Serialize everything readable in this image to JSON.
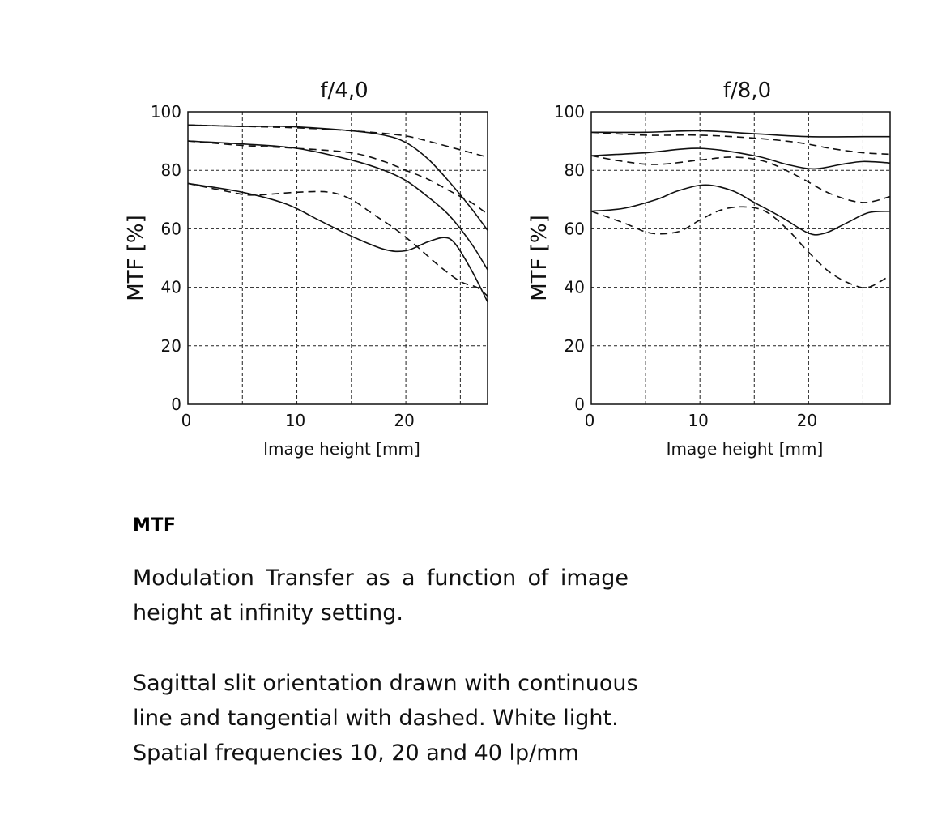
{
  "chart_data": [
    {
      "type": "line",
      "title": "f/4,0",
      "xlabel": "Image height [mm]",
      "ylabel": "MTF [%]",
      "xlim": [
        0,
        27.5
      ],
      "ylim": [
        0,
        100
      ],
      "xticks": [
        0,
        10,
        20
      ],
      "yticks": [
        0,
        20,
        40,
        60,
        80,
        100
      ],
      "x_grid": [
        5,
        10,
        15,
        20,
        25
      ],
      "grid": true,
      "series": [
        {
          "style": "solid",
          "points": [
            [
              0,
              95.5
            ],
            [
              5,
              95
            ],
            [
              9,
              95
            ],
            [
              15,
              93.5
            ],
            [
              18,
              92
            ],
            [
              20,
              89.5
            ],
            [
              22,
              84
            ],
            [
              24,
              76
            ],
            [
              26,
              67
            ],
            [
              27.5,
              59.5
            ]
          ]
        },
        {
          "style": "dashed",
          "points": [
            [
              0,
              95.5
            ],
            [
              5,
              95
            ],
            [
              10,
              94.5
            ],
            [
              15,
              93.5
            ],
            [
              19.5,
              92
            ],
            [
              22,
              90
            ],
            [
              25,
              87
            ],
            [
              27.5,
              84.5
            ]
          ]
        },
        {
          "style": "solid",
          "points": [
            [
              0,
              90
            ],
            [
              5,
              89
            ],
            [
              10,
              87.5
            ],
            [
              15,
              83.5
            ],
            [
              18,
              80
            ],
            [
              20,
              76.5
            ],
            [
              22,
              71
            ],
            [
              24,
              64.5
            ],
            [
              26,
              55
            ],
            [
              27.5,
              46
            ]
          ]
        },
        {
          "style": "dashed",
          "points": [
            [
              0,
              90
            ],
            [
              5,
              88.5
            ],
            [
              10,
              87.5
            ],
            [
              15,
              86
            ],
            [
              18,
              83
            ],
            [
              20,
              80
            ],
            [
              22,
              77
            ],
            [
              24,
              73
            ],
            [
              26,
              69
            ],
            [
              27.5,
              65
            ]
          ]
        },
        {
          "style": "solid",
          "points": [
            [
              0,
              75.5
            ],
            [
              5,
              72.5
            ],
            [
              9,
              68.5
            ],
            [
              12,
              63
            ],
            [
              15,
              57.5
            ],
            [
              18,
              53
            ],
            [
              20,
              52.5
            ],
            [
              22,
              55.5
            ],
            [
              23.5,
              57
            ],
            [
              24.5,
              55
            ],
            [
              26,
              46
            ],
            [
              27.5,
              35
            ]
          ]
        },
        {
          "style": "dashed",
          "points": [
            [
              0,
              75.5
            ],
            [
              4,
              72.5
            ],
            [
              6,
              71.5
            ],
            [
              10,
              72.5
            ],
            [
              13,
              72.5
            ],
            [
              15,
              70
            ],
            [
              17,
              65
            ],
            [
              19,
              60
            ],
            [
              21,
              54
            ],
            [
              23,
              47.5
            ],
            [
              25,
              42
            ],
            [
              26.5,
              40
            ],
            [
              27.5,
              37
            ]
          ]
        }
      ]
    },
    {
      "type": "line",
      "title": "f/8,0",
      "xlabel": "Image height [mm]",
      "ylabel": "MTF [%]",
      "xlim": [
        0,
        27.5
      ],
      "ylim": [
        0,
        100
      ],
      "xticks": [
        0,
        10,
        20
      ],
      "yticks": [
        0,
        20,
        40,
        60,
        80,
        100
      ],
      "x_grid": [
        5,
        10,
        15,
        20,
        25
      ],
      "grid": true,
      "series": [
        {
          "style": "solid",
          "points": [
            [
              0,
              93
            ],
            [
              5,
              93
            ],
            [
              10,
              93.5
            ],
            [
              15,
              92.5
            ],
            [
              20,
              91.5
            ],
            [
              25,
              91.5
            ],
            [
              27.5,
              91.5
            ]
          ]
        },
        {
          "style": "dashed",
          "points": [
            [
              0,
              93
            ],
            [
              5,
              92
            ],
            [
              10,
              92
            ],
            [
              15,
              91
            ],
            [
              19,
              89.5
            ],
            [
              22,
              87.5
            ],
            [
              25,
              86
            ],
            [
              27.5,
              85.5
            ]
          ]
        },
        {
          "style": "solid",
          "points": [
            [
              0,
              85
            ],
            [
              5,
              86
            ],
            [
              10,
              87.5
            ],
            [
              15,
              85
            ],
            [
              18,
              82
            ],
            [
              20.5,
              80.5
            ],
            [
              23,
              82
            ],
            [
              25,
              83
            ],
            [
              27.5,
              82.5
            ]
          ]
        },
        {
          "style": "dashed",
          "points": [
            [
              0,
              85
            ],
            [
              3,
              83
            ],
            [
              6,
              82
            ],
            [
              10,
              83.5
            ],
            [
              13,
              84.5
            ],
            [
              16,
              83
            ],
            [
              19,
              78
            ],
            [
              22,
              72
            ],
            [
              25,
              69
            ],
            [
              27.5,
              71
            ]
          ]
        },
        {
          "style": "solid",
          "points": [
            [
              0,
              66
            ],
            [
              3,
              67
            ],
            [
              6,
              70
            ],
            [
              8,
              73
            ],
            [
              10.5,
              75
            ],
            [
              13,
              73
            ],
            [
              15,
              69
            ],
            [
              17.5,
              64
            ],
            [
              20,
              58.5
            ],
            [
              21.5,
              58.5
            ],
            [
              23.5,
              62
            ],
            [
              25.5,
              65.5
            ],
            [
              27.5,
              66
            ]
          ]
        },
        {
          "style": "dashed",
          "points": [
            [
              0,
              66
            ],
            [
              3,
              62
            ],
            [
              5.5,
              58.5
            ],
            [
              8,
              59
            ],
            [
              10,
              63
            ],
            [
              12,
              66.5
            ],
            [
              14,
              67.5
            ],
            [
              16,
              66
            ],
            [
              18,
              60
            ],
            [
              20,
              52
            ],
            [
              22,
              45
            ],
            [
              24,
              41
            ],
            [
              25.5,
              40
            ],
            [
              27.5,
              44
            ]
          ]
        }
      ]
    }
  ],
  "text": {
    "heading": "MTF",
    "para1_lines": [
      "Modulation Transfer as a function of image",
      "height at infinity setting."
    ],
    "para2_lines": [
      "Sagittal slit orientation drawn with continuous",
      "line and tangential with dashed. White light.",
      "Spatial frequencies 10, 20 and 40 lp/mm"
    ]
  }
}
